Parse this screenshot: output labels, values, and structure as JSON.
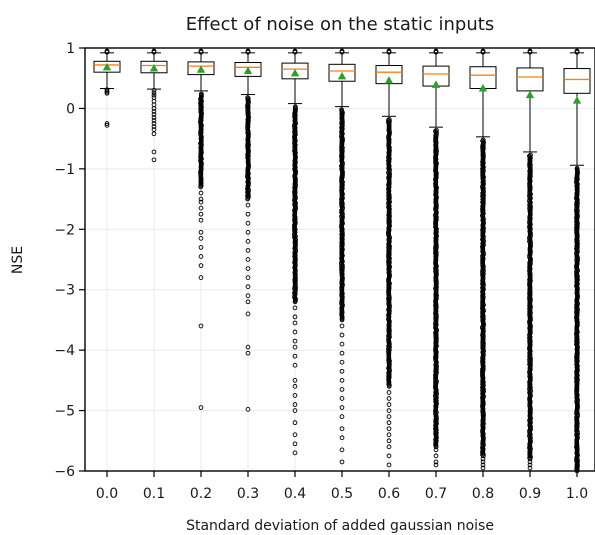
{
  "chart_data": {
    "type": "box",
    "title": "Effect of noise on the static inputs",
    "xlabel": "Standard deviation of added gaussian noise",
    "ylabel": "NSE",
    "ylim": [
      -6,
      1
    ],
    "yticks": [
      1,
      0,
      -1,
      -2,
      -3,
      -4,
      -5,
      -6
    ],
    "ytick_labels": [
      "1",
      "0",
      "−1",
      "−2",
      "−3",
      "−4",
      "−5",
      "−6"
    ],
    "grid": true,
    "colors": {
      "box": "#000000",
      "median": "#ff7f0e",
      "mean": "#2ca02c",
      "grid": "#ebebeb"
    },
    "categories": [
      "0.0",
      "0.1",
      "0.2",
      "0.3",
      "0.4",
      "0.5",
      "0.6",
      "0.7",
      "0.8",
      "0.9",
      "1.0"
    ],
    "boxes": [
      {
        "q1": 0.6,
        "median": 0.72,
        "q3": 0.78,
        "mean": 0.68,
        "whisker_low": 0.33,
        "whisker_high": 0.92,
        "fliers_low": [
          0.31,
          0.29,
          0.27,
          0.25,
          -0.25,
          -0.28
        ],
        "fliers_high": [
          0.93,
          0.94,
          0.95
        ]
      },
      {
        "q1": 0.59,
        "median": 0.71,
        "q3": 0.78,
        "mean": 0.66,
        "whisker_low": 0.32,
        "whisker_high": 0.92,
        "fliers_low": [
          0.3,
          0.26,
          0.22,
          0.18,
          0.12,
          0.06,
          0.0,
          -0.05,
          -0.1,
          -0.15,
          -0.2,
          -0.25,
          -0.3,
          -0.35,
          -0.42,
          -0.72,
          -0.85
        ],
        "fliers_high": [
          0.93,
          0.94,
          0.95
        ]
      },
      {
        "q1": 0.56,
        "median": 0.7,
        "q3": 0.77,
        "mean": 0.64,
        "whisker_low": 0.29,
        "whisker_high": 0.92,
        "dense_low_to": -1.3,
        "fliers_low": [
          -1.4,
          -1.5,
          -1.55,
          -1.65,
          -1.75,
          -1.85,
          -2.05,
          -2.15,
          -2.3,
          -2.45,
          -2.6,
          -2.8,
          -3.6,
          -4.95
        ],
        "fliers_high": [
          0.93,
          0.94,
          0.95
        ]
      },
      {
        "q1": 0.53,
        "median": 0.68,
        "q3": 0.76,
        "mean": 0.62,
        "whisker_low": 0.23,
        "whisker_high": 0.92,
        "dense_low_to": -1.5,
        "fliers_low": [
          -1.6,
          -1.75,
          -1.9,
          -2.05,
          -2.2,
          -2.35,
          -2.5,
          -2.65,
          -2.8,
          -2.95,
          -3.1,
          -3.2,
          -3.4,
          -3.95,
          -4.05,
          -4.98
        ],
        "fliers_high": [
          0.93,
          0.94,
          0.95
        ]
      },
      {
        "q1": 0.49,
        "median": 0.65,
        "q3": 0.75,
        "mean": 0.58,
        "whisker_low": 0.08,
        "whisker_high": 0.92,
        "dense_low_to": -3.2,
        "fliers_low": [
          -3.3,
          -3.45,
          -3.55,
          -3.7,
          -3.85,
          -3.95,
          -4.1,
          -4.25,
          -4.5,
          -4.6,
          -4.75,
          -4.9,
          -5.0,
          -5.2,
          -5.4,
          -5.55,
          -5.7
        ],
        "fliers_high": [
          0.93,
          0.94,
          0.95
        ]
      },
      {
        "q1": 0.45,
        "median": 0.62,
        "q3": 0.73,
        "mean": 0.53,
        "whisker_low": 0.03,
        "whisker_high": 0.92,
        "dense_low_to": -3.5,
        "fliers_low": [
          -3.6,
          -3.75,
          -3.9,
          -4.05,
          -4.2,
          -4.35,
          -4.5,
          -4.65,
          -4.8,
          -4.95,
          -5.1,
          -5.3,
          -5.45,
          -5.65,
          -5.85
        ],
        "fliers_high": [
          0.93,
          0.94,
          0.95
        ]
      },
      {
        "q1": 0.41,
        "median": 0.6,
        "q3": 0.71,
        "mean": 0.46,
        "whisker_low": -0.13,
        "whisker_high": 0.92,
        "dense_low_to": -4.6,
        "fliers_low": [
          -4.7,
          -4.8,
          -4.9,
          -5.0,
          -5.1,
          -5.2,
          -5.3,
          -5.4,
          -5.5,
          -5.6,
          -5.75,
          -5.9
        ],
        "fliers_high": [
          0.93,
          0.94,
          0.95
        ]
      },
      {
        "q1": 0.37,
        "median": 0.57,
        "q3": 0.7,
        "mean": 0.39,
        "whisker_low": -0.31,
        "whisker_high": 0.92,
        "dense_low_to": -5.6,
        "fliers_low": [
          -5.65,
          -5.75,
          -5.85,
          -5.9
        ],
        "fliers_high": [
          0.93,
          0.94,
          0.95
        ]
      },
      {
        "q1": 0.33,
        "median": 0.55,
        "q3": 0.69,
        "mean": 0.33,
        "whisker_low": -0.47,
        "whisker_high": 0.92,
        "dense_low_to": -5.75,
        "fliers_low": [
          -5.8,
          -5.85,
          -5.9,
          -5.95
        ],
        "fliers_high": [
          0.93,
          0.94,
          0.95
        ]
      },
      {
        "q1": 0.29,
        "median": 0.52,
        "q3": 0.67,
        "mean": 0.22,
        "whisker_low": -0.72,
        "whisker_high": 0.92,
        "dense_low_to": -5.8,
        "fliers_low": [
          -5.85,
          -5.9,
          -5.95
        ],
        "fliers_high": [
          0.93,
          0.94,
          0.95
        ]
      },
      {
        "q1": 0.25,
        "median": 0.48,
        "q3": 0.66,
        "mean": 0.13,
        "whisker_low": -0.94,
        "whisker_high": 0.92,
        "dense_low_to": -6.0,
        "fliers_low": [
          -5.9,
          -5.95
        ],
        "fliers_high": [
          0.93,
          0.94,
          0.95
        ]
      }
    ]
  }
}
